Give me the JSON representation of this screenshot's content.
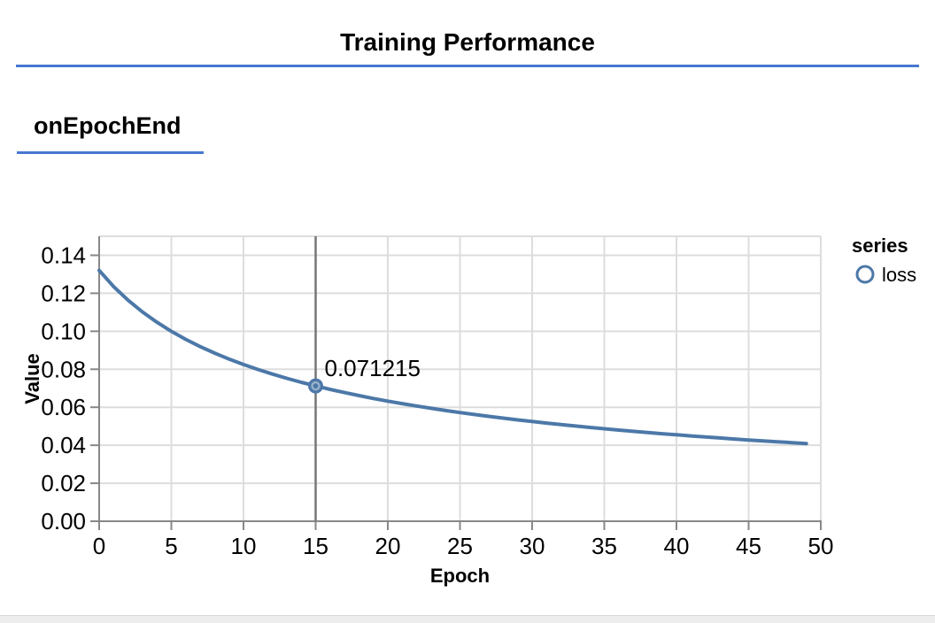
{
  "page": {
    "title": "Training Performance",
    "section_label": "onEpochEnd"
  },
  "colors": {
    "accent_rule": "#4678d0",
    "line": "#4c78a8",
    "grid": "#dddddd",
    "axis": "#888888",
    "crosshair": "#767676",
    "marker_inner_ring": "#96b0ca",
    "text": "#000000",
    "footer_strip": "#ededed"
  },
  "chart_data": {
    "type": "line",
    "title": "",
    "xlabel": "Epoch",
    "ylabel": "Value",
    "xlim": [
      0,
      50
    ],
    "ylim": [
      0,
      0.15
    ],
    "grid": true,
    "x_ticks": [
      {
        "v": 0,
        "label": "0"
      },
      {
        "v": 5,
        "label": "5"
      },
      {
        "v": 10,
        "label": "10"
      },
      {
        "v": 15,
        "label": "15"
      },
      {
        "v": 20,
        "label": "20"
      },
      {
        "v": 25,
        "label": "25"
      },
      {
        "v": 30,
        "label": "30"
      },
      {
        "v": 35,
        "label": "35"
      },
      {
        "v": 40,
        "label": "40"
      },
      {
        "v": 45,
        "label": "45"
      },
      {
        "v": 50,
        "label": "50"
      }
    ],
    "y_ticks": [
      {
        "v": 0,
        "label": "0.00"
      },
      {
        "v": 0.02,
        "label": "0.02"
      },
      {
        "v": 0.04,
        "label": "0.04"
      },
      {
        "v": 0.06,
        "label": "0.06"
      },
      {
        "v": 0.08,
        "label": "0.08"
      },
      {
        "v": 0.1,
        "label": "0.10"
      },
      {
        "v": 0.12,
        "label": "0.12"
      },
      {
        "v": 0.14,
        "label": "0.14"
      }
    ],
    "legend": {
      "title": "series",
      "position": "right",
      "entries": [
        {
          "label": "loss",
          "color": "#4c78a8",
          "marker": "open-circle"
        }
      ]
    },
    "series": [
      {
        "name": "loss",
        "x": [
          0,
          1,
          2,
          3,
          4,
          5,
          6,
          7,
          8,
          9,
          10,
          11,
          12,
          13,
          14,
          15,
          16,
          17,
          18,
          19,
          20,
          21,
          22,
          23,
          24,
          25,
          26,
          27,
          28,
          29,
          30,
          31,
          32,
          33,
          34,
          35,
          36,
          37,
          38,
          39,
          40,
          41,
          42,
          43,
          44,
          45,
          46,
          47,
          48,
          49
        ],
        "values": [
          0.132027,
          0.123558,
          0.116365,
          0.110155,
          0.104745,
          0.099967,
          0.095745,
          0.091918,
          0.088489,
          0.08535,
          0.082497,
          0.07988,
          0.077462,
          0.075236,
          0.073152,
          0.071215,
          0.069413,
          0.067717,
          0.066137,
          0.064634,
          0.063236,
          0.061893,
          0.06063,
          0.05943,
          0.058296,
          0.057212,
          0.056174,
          0.05519,
          0.054249,
          0.053356,
          0.052491,
          0.05167,
          0.050872,
          0.05011,
          0.049377,
          0.048675,
          0.048,
          0.047341,
          0.046711,
          0.046094,
          0.045502,
          0.044924,
          0.044364,
          0.043821,
          0.043296,
          0.042786,
          0.042295,
          0.041816,
          0.041356,
          0.040903
        ]
      }
    ],
    "annotation": {
      "x": 15,
      "y": 0.071215,
      "label": "0.071215",
      "crosshair": true
    }
  }
}
